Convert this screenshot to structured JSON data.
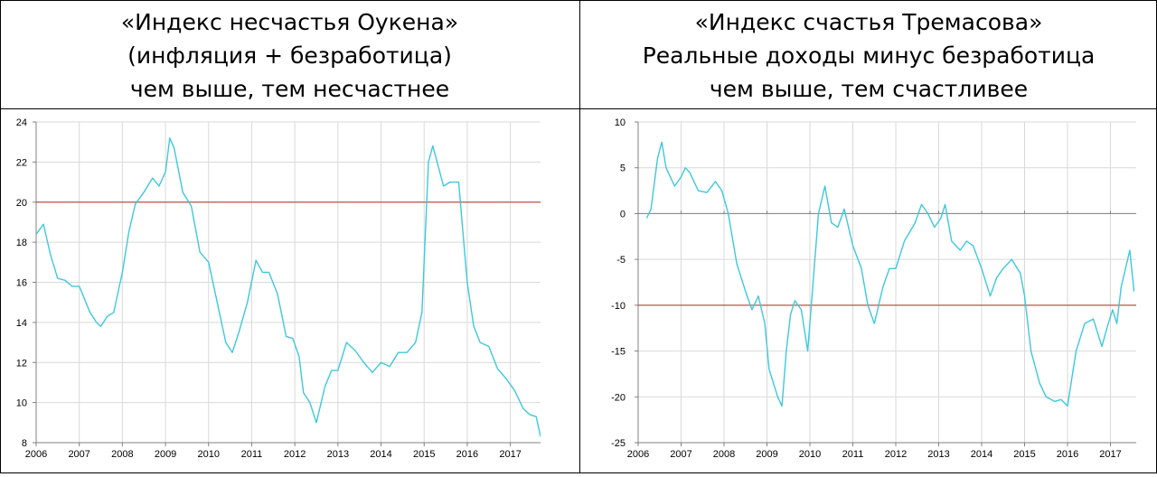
{
  "panels": [
    {
      "title_lines": [
        "«Индекс несчастья Оукена»",
        "(инфляция + безработица)",
        "чем выше, тем несчастнее"
      ]
    },
    {
      "title_lines": [
        "«Индекс счастья Тремасова»",
        "Реальные доходы минус безработица",
        "чем выше, тем счастливее"
      ]
    }
  ],
  "chart_data": [
    {
      "type": "line",
      "title": "«Индекс несчастья Оукена» (инфляция + безработица) чем выше, тем несчастнее",
      "xlabel": "",
      "ylabel": "",
      "xlim": [
        2006,
        2017.7
      ],
      "ylim": [
        8,
        24
      ],
      "x_ticks": [
        "2006",
        "2007",
        "2008",
        "2009",
        "2010",
        "2011",
        "2012",
        "2013",
        "2014",
        "2015",
        "2016",
        "2017"
      ],
      "y_ticks": [
        "8",
        "10",
        "12",
        "14",
        "16",
        "18",
        "20",
        "22",
        "24"
      ],
      "grid": true,
      "reference_line": 20,
      "line_color": "#3ec8dc",
      "reference_color": "#c0504d",
      "series": [
        {
          "x": [
            2006.0,
            2006.17,
            2006.33,
            2006.5,
            2006.67,
            2006.83,
            2007.0,
            2007.25,
            2007.4,
            2007.5,
            2007.65,
            2007.8,
            2008.0,
            2008.15,
            2008.3,
            2008.5,
            2008.7,
            2008.85,
            2009.0,
            2009.1,
            2009.2,
            2009.4,
            2009.6,
            2009.8,
            2010.0,
            2010.2,
            2010.4,
            2010.55,
            2010.7,
            2010.9,
            2011.1,
            2011.25,
            2011.4,
            2011.6,
            2011.8,
            2011.95,
            2012.1,
            2012.2,
            2012.35,
            2012.5,
            2012.7,
            2012.85,
            2013.0,
            2013.2,
            2013.4,
            2013.6,
            2013.8,
            2014.0,
            2014.2,
            2014.4,
            2014.6,
            2014.8,
            2014.95,
            2015.1,
            2015.2,
            2015.45,
            2015.6,
            2015.8,
            2016.0,
            2016.15,
            2016.3,
            2016.5,
            2016.7,
            2016.9,
            2017.1,
            2017.3,
            2017.45,
            2017.6,
            2017.7
          ],
          "values": [
            18.4,
            18.9,
            17.4,
            16.2,
            16.1,
            15.8,
            15.8,
            14.5,
            14.0,
            13.8,
            14.3,
            14.5,
            16.5,
            18.5,
            19.9,
            20.5,
            21.2,
            20.8,
            21.5,
            23.2,
            22.7,
            20.5,
            19.8,
            17.5,
            17.0,
            15.0,
            13.0,
            12.5,
            13.5,
            15.0,
            17.1,
            16.5,
            16.5,
            15.4,
            13.3,
            13.2,
            12.3,
            10.5,
            10.0,
            9.0,
            10.8,
            11.6,
            11.6,
            13.0,
            12.6,
            12.0,
            11.5,
            12.0,
            11.8,
            12.5,
            12.5,
            13.0,
            14.5,
            22.0,
            22.8,
            20.8,
            21.0,
            21.0,
            16.0,
            13.8,
            13.0,
            12.8,
            11.7,
            11.2,
            10.6,
            9.7,
            9.4,
            9.3,
            8.3
          ]
        }
      ]
    },
    {
      "type": "line",
      "title": "«Индекс счастья Тремасова» Реальные доходы минус безработица чем выше, тем счастливее",
      "xlabel": "",
      "ylabel": "",
      "xlim": [
        2006,
        2017.6
      ],
      "ylim": [
        -25,
        10
      ],
      "x_ticks": [
        "2006",
        "2007",
        "2008",
        "2009",
        "2010",
        "2011",
        "2012",
        "2013",
        "2014",
        "2015",
        "2016",
        "2017"
      ],
      "y_ticks": [
        "-25",
        "-20",
        "-15",
        "-10",
        "-5",
        "0",
        "5",
        "10"
      ],
      "grid": true,
      "reference_line": -10,
      "zero_line": 0,
      "line_color": "#3ec8dc",
      "reference_color": "#c0504d",
      "series": [
        {
          "x": [
            2006.2,
            2006.3,
            2006.45,
            2006.55,
            2006.65,
            2006.75,
            2006.85,
            2007.0,
            2007.1,
            2007.2,
            2007.4,
            2007.6,
            2007.8,
            2007.95,
            2008.1,
            2008.3,
            2008.5,
            2008.65,
            2008.8,
            2008.95,
            2009.05,
            2009.25,
            2009.35,
            2009.45,
            2009.55,
            2009.65,
            2009.8,
            2009.95,
            2010.1,
            2010.2,
            2010.35,
            2010.5,
            2010.65,
            2010.8,
            2011.0,
            2011.2,
            2011.35,
            2011.5,
            2011.7,
            2011.85,
            2012.0,
            2012.2,
            2012.45,
            2012.6,
            2012.75,
            2012.9,
            2013.05,
            2013.15,
            2013.3,
            2013.5,
            2013.65,
            2013.8,
            2014.0,
            2014.2,
            2014.35,
            2014.5,
            2014.7,
            2014.9,
            2015.0,
            2015.15,
            2015.35,
            2015.5,
            2015.7,
            2015.85,
            2016.0,
            2016.2,
            2016.4,
            2016.6,
            2016.8,
            2016.95,
            2017.05,
            2017.15,
            2017.25,
            2017.45,
            2017.55
          ],
          "values": [
            -0.5,
            0.5,
            6.0,
            7.8,
            5.0,
            4.0,
            3.0,
            4.0,
            5.0,
            4.5,
            2.5,
            2.3,
            3.5,
            2.5,
            0.0,
            -5.5,
            -8.5,
            -10.5,
            -9.0,
            -12.0,
            -17.0,
            -20.0,
            -21.0,
            -15.0,
            -11.0,
            -9.5,
            -10.5,
            -15.0,
            -6.0,
            0.0,
            3.0,
            -1.0,
            -1.5,
            0.5,
            -3.5,
            -6.0,
            -10.0,
            -12.0,
            -8.0,
            -6.0,
            -6.0,
            -3.0,
            -1.0,
            1.0,
            0.0,
            -1.5,
            -0.5,
            1.0,
            -3.0,
            -4.0,
            -3.0,
            -3.5,
            -6.0,
            -9.0,
            -7.0,
            -6.0,
            -5.0,
            -6.5,
            -9.0,
            -15.0,
            -18.5,
            -20.0,
            -20.5,
            -20.3,
            -21.0,
            -15.0,
            -12.0,
            -11.5,
            -14.5,
            -12.0,
            -10.5,
            -12.0,
            -8.0,
            -4.0,
            -8.5
          ]
        }
      ]
    }
  ]
}
